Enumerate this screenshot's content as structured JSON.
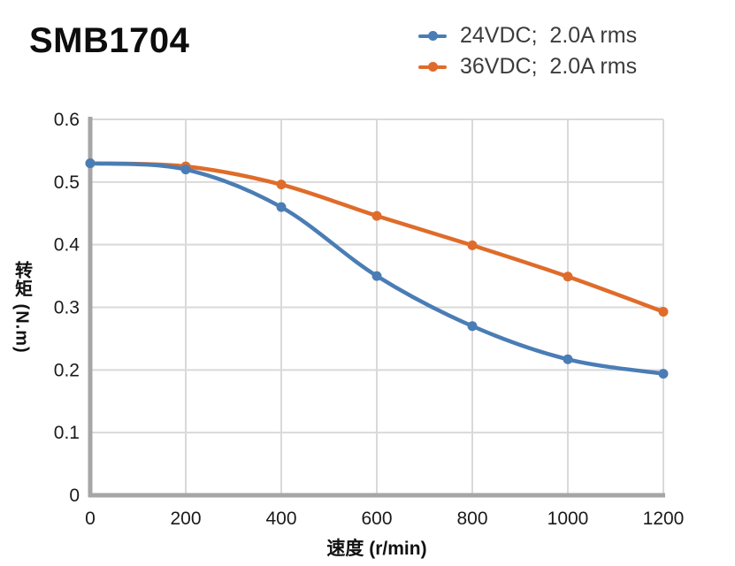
{
  "title": "SMB1704",
  "axes": {
    "x_label": "速度 (r/min)",
    "y_label": "转矩 (N.m)"
  },
  "chart_data": {
    "type": "line",
    "title": "SMB1704",
    "xlabel": "速度 (r/min)",
    "ylabel": "转矩 (N.m)",
    "x": [
      0,
      200,
      400,
      600,
      800,
      1000,
      1200
    ],
    "series": [
      {
        "name": "24VDC;  2.0A rms",
        "color": "#4a7db5",
        "values": [
          0.53,
          0.52,
          0.46,
          0.35,
          0.27,
          0.217,
          0.194
        ]
      },
      {
        "name": "36VDC;  2.0A rms",
        "color": "#df6c2a",
        "values": [
          0.53,
          0.525,
          0.496,
          0.446,
          0.399,
          0.349,
          0.293
        ]
      }
    ],
    "xlim": [
      0,
      1200
    ],
    "ylim": [
      0,
      0.6
    ],
    "x_ticks": {
      "values": [
        0,
        200,
        400,
        600,
        800,
        1000,
        1200
      ],
      "labels": [
        "0",
        "200",
        "400",
        "600",
        "800",
        "1000",
        "1200"
      ]
    },
    "y_ticks": {
      "values": [
        0,
        0.1,
        0.2,
        0.3,
        0.4,
        0.5,
        0.6
      ],
      "labels": [
        "0",
        "0.1",
        "0.2",
        "0.3",
        "0.4",
        "0.5",
        "0.6"
      ]
    },
    "grid": true,
    "legend_position": "top-right",
    "colors": {
      "grid": "#d9d9d9",
      "axis": "#a6a6a6",
      "tick_text": "#1a1a1a"
    }
  }
}
